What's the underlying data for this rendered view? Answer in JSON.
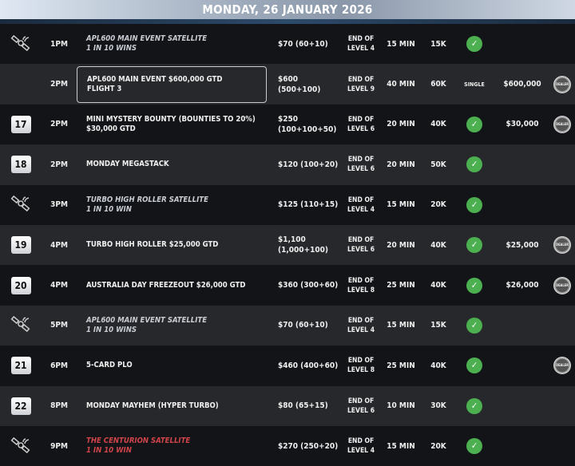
{
  "header": {
    "date": "MONDAY, 26 JANUARY 2026"
  },
  "colors": {
    "check": "#4caf50",
    "satellite_text": "#c8ccd3",
    "featured_text": "#d0444a"
  },
  "rows": [
    {
      "icon": "satellite-icon",
      "time": "1PM",
      "name1": "APL600 MAIN EVENT SATELLITE",
      "name2": "1 IN 10 WINS",
      "style": "sat",
      "buyin": "$70 (60+10)",
      "late1": "END OF",
      "late2": "LEVEL 4",
      "levels": "15 MIN",
      "stack": "15K",
      "rebuy": "check",
      "gtd": "",
      "dealer": false
    },
    {
      "icon": "",
      "time": "2PM",
      "name1": "APL600 MAIN EVENT $600,000 GTD",
      "name2": "FLIGHT 3",
      "style": "hl",
      "buyin": "$600 (500+100)",
      "late1": "END OF",
      "late2": "LEVEL 9",
      "levels": "40 MIN",
      "stack": "60K",
      "rebuy": "SINGLE",
      "gtd": "$600,000",
      "dealer": true
    },
    {
      "icon": "17",
      "time": "2PM",
      "name1": "MINI MYSTERY BOUNTY (BOUNTIES TO 20%)",
      "name2": "$30,000 GTD",
      "style": "",
      "buyin": "$250",
      "buyin2": "(100+100+50)",
      "late1": "END OF",
      "late2": "LEVEL 6",
      "levels": "20 MIN",
      "stack": "40K",
      "rebuy": "check",
      "gtd": "$30,000",
      "dealer": true
    },
    {
      "icon": "18",
      "time": "2PM",
      "name1": "MONDAY MEGASTACK",
      "name2": "",
      "style": "",
      "buyin": "$120 (100+20)",
      "late1": "END OF",
      "late2": "LEVEL 6",
      "levels": "20 MIN",
      "stack": "50K",
      "rebuy": "check",
      "gtd": "",
      "dealer": false
    },
    {
      "icon": "satellite-icon",
      "time": "3PM",
      "name1": "TURBO HIGH ROLLER SATELLITE",
      "name2": "1 IN 10 WIN",
      "style": "sat",
      "buyin": "$125 (110+15)",
      "late1": "END OF",
      "late2": "LEVEL 4",
      "levels": "15 MIN",
      "stack": "20K",
      "rebuy": "check",
      "gtd": "",
      "dealer": false
    },
    {
      "icon": "19",
      "time": "4PM",
      "name1": "TURBO HIGH ROLLER $25,000 GTD",
      "name2": "",
      "style": "",
      "buyin": "$1,100 (1,000+100)",
      "late1": "END OF",
      "late2": "LEVEL 6",
      "levels": "20 MIN",
      "stack": "40K",
      "rebuy": "check",
      "gtd": "$25,000",
      "dealer": true
    },
    {
      "icon": "20",
      "time": "4PM",
      "name1": "AUSTRALIA DAY FREEZEOUT $26,000 GTD",
      "name2": "",
      "style": "",
      "buyin": "$360 (300+60)",
      "late1": "END OF",
      "late2": "LEVEL 8",
      "levels": "25 MIN",
      "stack": "40K",
      "rebuy": "check",
      "gtd": "$26,000",
      "dealer": true
    },
    {
      "icon": "satellite-icon",
      "time": "5PM",
      "name1": "APL600 MAIN EVENT SATELLITE",
      "name2": "1 IN 10 WINS",
      "style": "sat",
      "buyin": "$70 (60+10)",
      "late1": "END OF",
      "late2": "LEVEL 4",
      "levels": "15 MIN",
      "stack": "15K",
      "rebuy": "check",
      "gtd": "",
      "dealer": false
    },
    {
      "icon": "21",
      "time": "6PM",
      "name1": "5-CARD PLO",
      "name2": "",
      "style": "",
      "buyin": "$460 (400+60)",
      "late1": "END OF",
      "late2": "LEVEL 8",
      "levels": "25 MIN",
      "stack": "40K",
      "rebuy": "check",
      "gtd": "",
      "dealer": true
    },
    {
      "icon": "22",
      "time": "8PM",
      "name1": "MONDAY MAYHEM (HYPER TURBO)",
      "name2": "",
      "style": "",
      "buyin": "$80 (65+15)",
      "late1": "END OF",
      "late2": "LEVEL 6",
      "levels": "10 MIN",
      "stack": "30K",
      "rebuy": "check",
      "gtd": "",
      "dealer": false
    },
    {
      "icon": "satellite-icon",
      "time": "9PM",
      "name1": "THE CENTURION SATELLITE",
      "name2": "1 IN 10 WIN",
      "style": "red",
      "buyin": "$270 (250+20)",
      "late1": "END OF",
      "late2": "LEVEL 4",
      "levels": "15 MIN",
      "stack": "20K",
      "rebuy": "check",
      "gtd": "",
      "dealer": false
    }
  ],
  "dealer_label": "DEALER"
}
